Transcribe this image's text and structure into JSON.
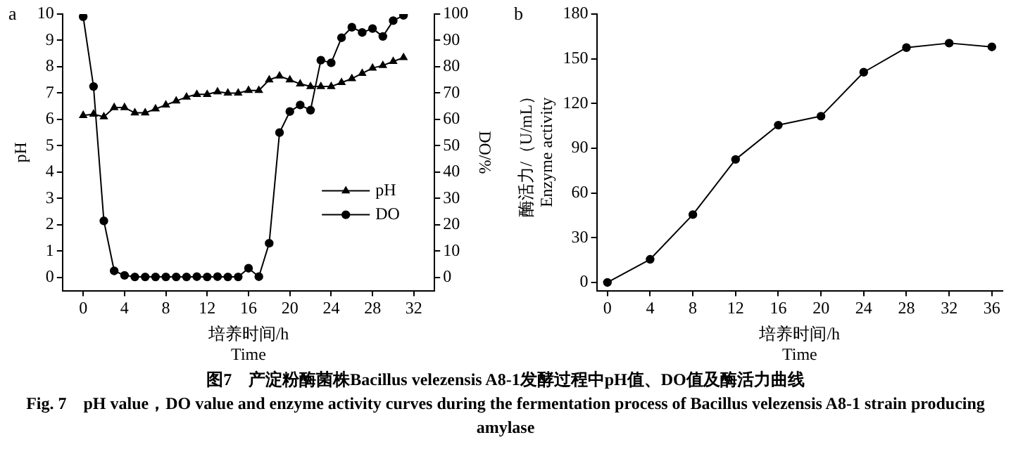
{
  "chart_data": [
    {
      "type": "line",
      "xlabel": "培养时间/h\nTime",
      "ylabel": "pH",
      "y2label": "DO/%",
      "annotations": [
        "a",
        "图7　产淀粉酶菌株Bacillus velezensis A8-1发酵过程中pH值、DO值及酶活力曲线",
        "Fig. 7　pH value，DO value and enzyme activity curves during the fermentation process of Bacillus velezensis A8-1 strain producing amylase"
      ],
      "x": [
        0,
        1,
        2,
        3,
        4,
        5,
        6,
        7,
        8,
        9,
        10,
        11,
        12,
        13,
        14,
        15,
        16,
        17,
        18,
        19,
        20,
        21,
        22,
        23,
        24,
        25,
        26,
        27,
        28,
        29,
        30,
        31
      ],
      "series": [
        {
          "name": "pH",
          "color": "#000000",
          "marker": "triangle",
          "values": [
            6.15,
            6.2,
            6.1,
            6.45,
            6.45,
            6.25,
            6.25,
            6.4,
            6.55,
            6.7,
            6.85,
            6.95,
            6.95,
            7.05,
            7.0,
            7.0,
            7.1,
            7.1,
            7.5,
            7.65,
            7.5,
            7.35,
            7.25,
            7.25,
            7.25,
            7.4,
            7.55,
            7.75,
            7.95,
            8.05,
            8.2,
            8.35
          ]
        },
        {
          "name": "DO",
          "color": "#000000",
          "marker": "circle",
          "axis": "y2",
          "values": [
            99,
            72.5,
            21.5,
            2.5,
            0.8,
            0.2,
            0.2,
            0.2,
            0.2,
            0.2,
            0.2,
            0.3,
            0.2,
            0.3,
            0.2,
            0.2,
            3.5,
            0.3,
            13,
            55,
            63,
            65.5,
            63.5,
            82.5,
            81.5,
            91,
            95,
            93,
            94.5,
            91.5,
            97.5,
            99.5
          ]
        }
      ],
      "xlim": [
        -2,
        34
      ],
      "xticks": [
        0,
        4,
        8,
        12,
        16,
        20,
        24,
        28,
        32
      ],
      "ylim": [
        -0.5,
        10
      ],
      "yticks": [
        0,
        1,
        2,
        3,
        4,
        5,
        6,
        7,
        8,
        9,
        10
      ],
      "y2lim": [
        -5,
        100
      ],
      "y2ticks": [
        0,
        10,
        20,
        30,
        40,
        50,
        60,
        70,
        80,
        90,
        100
      ],
      "legend": "bottom right"
    },
    {
      "type": "line",
      "xlabel": "培养时间/h\nTime",
      "ylabel": "酶活力/（U/mL）\nEnzyme activity",
      "annotations": [
        "b"
      ],
      "x": [
        0,
        4,
        8,
        12,
        16,
        20,
        24,
        28,
        32,
        36
      ],
      "series": [
        {
          "color": "#000000",
          "marker": "circle",
          "values": [
            0,
            15.5,
            45.5,
            82.5,
            105.5,
            111.5,
            141,
            157.5,
            160.5,
            158
          ]
        }
      ],
      "xlim": [
        -1,
        37
      ],
      "xticks": [
        0,
        4,
        8,
        12,
        16,
        20,
        24,
        28,
        32,
        36
      ],
      "ylim": [
        -5.5,
        180
      ],
      "yticks": [
        0,
        30,
        60,
        90,
        120,
        150,
        180
      ]
    }
  ]
}
